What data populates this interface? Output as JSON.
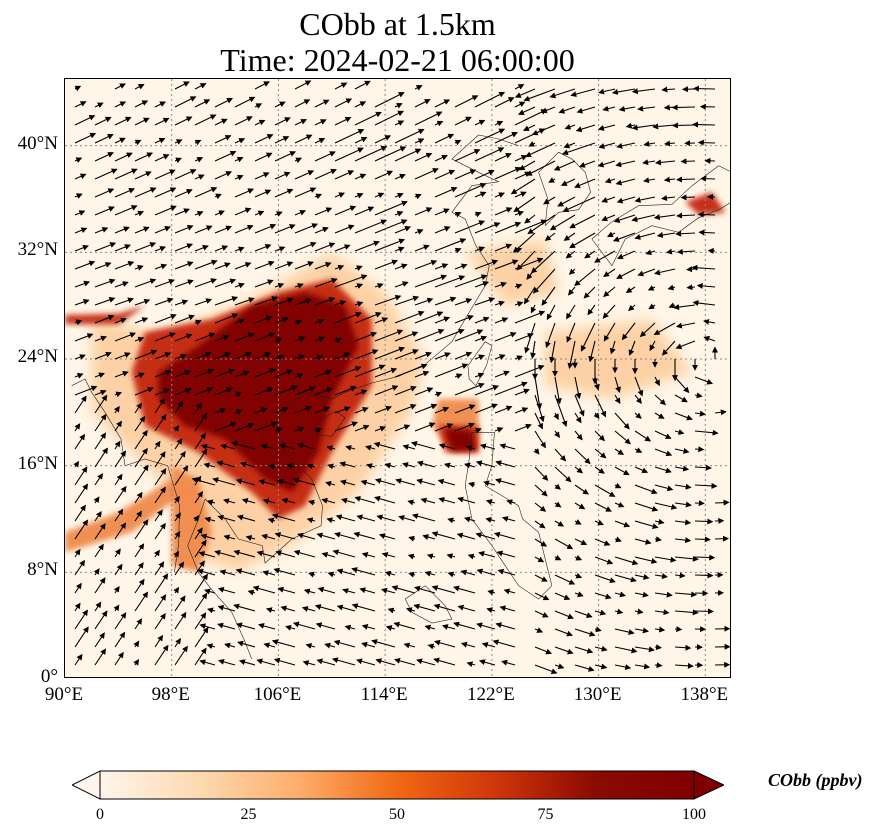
{
  "title_line1": "CObb at 1.5km",
  "title_line2": "Time: 2024-02-21 06:00:00",
  "lat_ticks": [
    "0°",
    "8°N",
    "16°N",
    "24°N",
    "32°N",
    "40°N"
  ],
  "lon_ticks": [
    "90°E",
    "98°E",
    "106°E",
    "114°E",
    "122°E",
    "130°E",
    "138°E"
  ],
  "colorbar": {
    "label": "CObb (ppbv)",
    "ticks": [
      "0",
      "25",
      "50",
      "75",
      "100"
    ],
    "min": 0,
    "max": 100,
    "colormap": [
      "#fff5eb",
      "#fdd9b1",
      "#fdae6b",
      "#f16913",
      "#d0350a",
      "#8b0a02",
      "#7f0000"
    ]
  },
  "map": {
    "lon_range": [
      90,
      140
    ],
    "lat_range": [
      0,
      45
    ],
    "plume_colors": [
      "#fdd0a2",
      "#f08a4b",
      "#c4260f",
      "#7f0000"
    ]
  }
}
